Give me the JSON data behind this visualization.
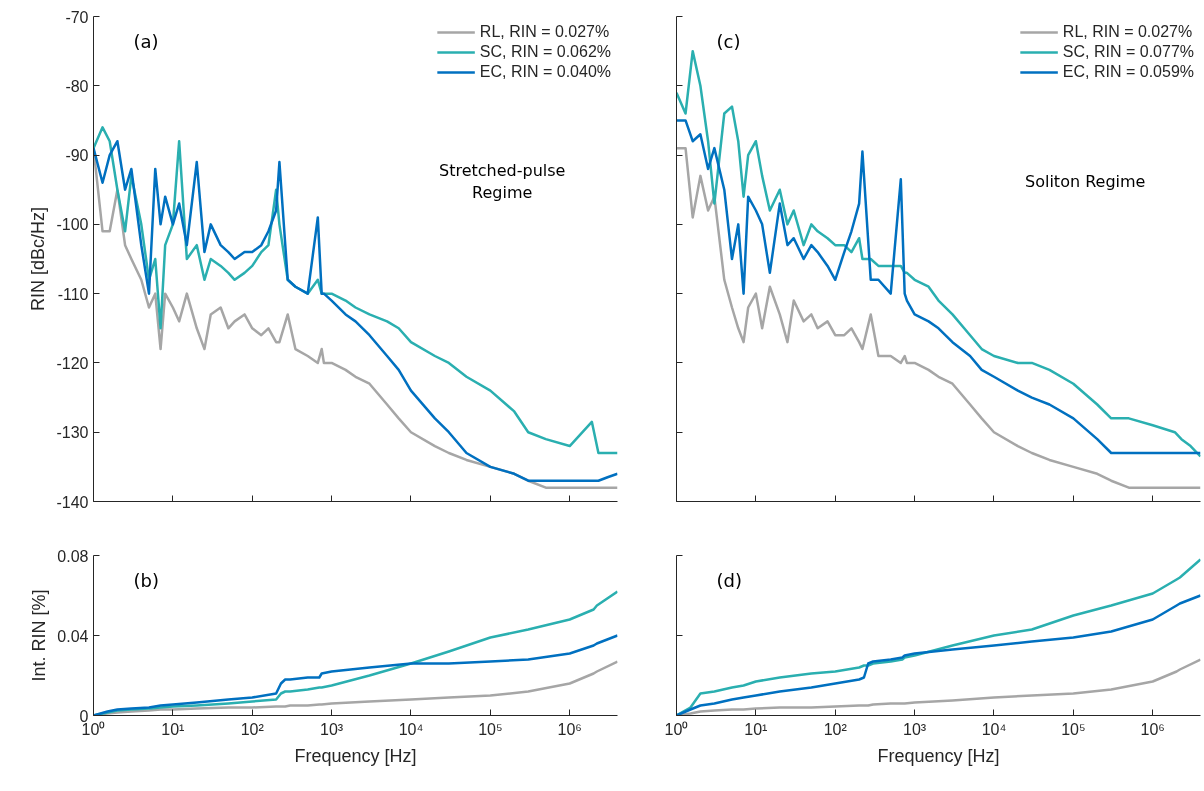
{
  "chart_data": [
    {
      "type": "line",
      "title": "(a)",
      "ylabel": "RIN [dBc/Hz]",
      "annotations": [
        "Stretched-pulse\nRegime"
      ],
      "log": "x",
      "legend": "top right",
      "tick_labels": "y",
      "xlim": [
        1,
        4000000
      ],
      "ylim": [
        -140,
        -70
      ],
      "yticks": [
        -140,
        -130,
        -120,
        -110,
        -100,
        -90,
        -80,
        -70
      ],
      "xticks": [
        {
          "value": 1,
          "label": null
        },
        {
          "value": 10,
          "label": null
        },
        {
          "value": 100,
          "label": null
        },
        {
          "value": 1000,
          "label": null
        },
        {
          "value": 10000,
          "label": null
        },
        {
          "value": 100000,
          "label": null
        },
        {
          "value": 1000000,
          "label": null
        }
      ],
      "x": [
        1,
        1.3,
        1.6,
        2,
        2.5,
        3,
        4,
        5,
        6,
        7,
        8,
        10,
        12,
        15,
        20,
        25,
        30,
        40,
        50,
        60,
        80,
        100,
        130,
        160,
        200,
        220,
        280,
        350,
        500,
        670,
        750,
        800,
        1000,
        1500,
        2000,
        3000,
        5000,
        7000,
        10000,
        20000,
        30000,
        50000,
        100000,
        200000,
        300000,
        500000,
        1000000,
        1900000,
        2300000,
        3000000,
        4000000
      ],
      "series": [
        {
          "name": "RL, RIN = 0.027%",
          "color": "#a6a6a6",
          "values": [
            -89,
            -101,
            -101,
            -95,
            -103,
            -105,
            -108,
            -112,
            -110,
            -118,
            -110,
            -112,
            -114,
            -110,
            -115,
            -118,
            -113,
            -112,
            -115,
            -114,
            -113,
            -115,
            -116,
            -115,
            -117,
            -117,
            -113,
            -118,
            -119,
            -120,
            -118,
            -120,
            -120,
            -121,
            -122,
            -123,
            -126,
            -128,
            -130,
            -132,
            -133,
            -134,
            -135,
            -136,
            -137,
            -138,
            -138,
            -138,
            -138,
            -138,
            -138
          ]
        },
        {
          "name": "SC, RIN = 0.062%",
          "color": "#2aafb0",
          "values": [
            -89,
            -86,
            -88,
            -95,
            -101,
            -93,
            -100,
            -108,
            -105,
            -115,
            -103,
            -100,
            -88,
            -105,
            -103,
            -108,
            -105,
            -106,
            -107,
            -108,
            -107,
            -106,
            -104,
            -103,
            -95,
            -100,
            -108,
            -109,
            -110,
            -108,
            -110,
            -110,
            -110,
            -111,
            -112,
            -113,
            -114,
            -115,
            -117,
            -119,
            -120,
            -122,
            -124,
            -127,
            -130,
            -131,
            -132,
            -128.5,
            -133,
            -133,
            -133
          ]
        },
        {
          "name": "EC, RIN = 0.040%",
          "color": "#0070c0",
          "values": [
            -89,
            -94,
            -90,
            -88,
            -95,
            -92,
            -103,
            -110,
            -92,
            -100,
            -96,
            -100,
            -97,
            -103,
            -91,
            -104,
            -100,
            -103,
            -104,
            -105,
            -104,
            -104,
            -103,
            -101,
            -98,
            -91,
            -108,
            -109,
            -110,
            -99,
            -110,
            -110,
            -111,
            -113,
            -114,
            -116,
            -119,
            -121,
            -124,
            -128,
            -130,
            -133,
            -135,
            -136,
            -137,
            -137,
            -137,
            -137,
            -137,
            -136.5,
            -136
          ]
        }
      ]
    },
    {
      "type": "line",
      "title": "(c)",
      "annotations": [
        "Soliton Regime"
      ],
      "log": "x",
      "legend": "top right",
      "tick_labels": false,
      "xlim": [
        1,
        4000000
      ],
      "ylim": [
        -140,
        -70
      ],
      "yticks": [
        {
          "value": -140,
          "label": null
        },
        {
          "value": -130,
          "label": null
        },
        {
          "value": -120,
          "label": null
        },
        {
          "value": -110,
          "label": null
        },
        {
          "value": -100,
          "label": null
        },
        {
          "value": -90,
          "label": null
        },
        {
          "value": -80,
          "label": null
        },
        {
          "value": -70,
          "label": null
        }
      ],
      "xticks": [
        {
          "value": 1,
          "label": null
        },
        {
          "value": 10,
          "label": null
        },
        {
          "value": 100,
          "label": null
        },
        {
          "value": 1000,
          "label": null
        },
        {
          "value": 10000,
          "label": null
        },
        {
          "value": 100000,
          "label": null
        },
        {
          "value": 1000000,
          "label": null
        }
      ],
      "x": [
        1,
        1.3,
        1.6,
        2,
        2.5,
        3,
        4,
        5,
        6,
        7,
        8,
        10,
        12,
        15,
        20,
        25,
        30,
        40,
        50,
        60,
        80,
        100,
        130,
        160,
        200,
        220,
        280,
        350,
        500,
        670,
        750,
        800,
        1000,
        1500,
        2000,
        3000,
        5000,
        7000,
        10000,
        20000,
        30000,
        50000,
        100000,
        200000,
        300000,
        500000,
        1000000,
        1900000,
        2300000,
        3000000,
        4000000
      ],
      "series": [
        {
          "name": "RL, RIN = 0.027%",
          "color": "#a6a6a6",
          "values": [
            -89,
            -89,
            -99,
            -93,
            -98,
            -96,
            -108,
            -112,
            -115,
            -117,
            -112,
            -110,
            -115,
            -109,
            -113,
            -117,
            -111,
            -114,
            -113,
            -115,
            -114,
            -116,
            -116,
            -115,
            -117,
            -118,
            -113,
            -119,
            -119,
            -120,
            -119,
            -120,
            -120,
            -121,
            -122,
            -123,
            -126,
            -128,
            -130,
            -132,
            -133,
            -134,
            -135,
            -136,
            -137,
            -138,
            -138,
            -138,
            -138,
            -138,
            -138
          ]
        },
        {
          "name": "SC, RIN = 0.077%",
          "color": "#2aafb0",
          "values": [
            -81,
            -84,
            -75,
            -80,
            -88,
            -97,
            -84,
            -83,
            -88,
            -96,
            -90,
            -88,
            -93,
            -98,
            -95,
            -100,
            -98,
            -103,
            -100,
            -101,
            -102,
            -103,
            -103,
            -104,
            -102,
            -105,
            -105,
            -106,
            -106,
            -106,
            -107,
            -107,
            -108,
            -109,
            -111,
            -113,
            -116,
            -118,
            -119,
            -120,
            -120,
            -121,
            -123,
            -126,
            -128,
            -128,
            -129,
            -130,
            -131,
            -132,
            -133.5
          ]
        },
        {
          "name": "EC, RIN = 0.059%",
          "color": "#0070c0",
          "values": [
            -85,
            -85,
            -88,
            -87,
            -92,
            -89,
            -95,
            -105,
            -100,
            -110,
            -96,
            -98,
            -100,
            -107,
            -97,
            -103,
            -102,
            -105,
            -103,
            -104,
            -106,
            -108,
            -104,
            -101,
            -97,
            -89.5,
            -108,
            -108,
            -110,
            -93.5,
            -110,
            -111,
            -113,
            -114,
            -115,
            -117,
            -119,
            -121,
            -122,
            -124,
            -125,
            -126,
            -128,
            -131,
            -133,
            -133,
            -133,
            -133,
            -133,
            -133,
            -133
          ]
        }
      ]
    },
    {
      "type": "line",
      "title": "(b)",
      "xlabel": "Frequency [Hz]",
      "ylabel": "Int. RIN [%]",
      "log": "x",
      "xlim": [
        1,
        4000000
      ],
      "ylim": [
        0,
        0.08
      ],
      "yticks": [
        0,
        0.04,
        0.08
      ],
      "xticks": [
        {
          "value": 1,
          "label": "10⁰"
        },
        {
          "value": 10,
          "label": "10¹"
        },
        {
          "value": 100,
          "label": "10²"
        },
        {
          "value": 1000,
          "label": "10³"
        },
        {
          "value": 10000,
          "label": "10⁴"
        },
        {
          "value": 100000,
          "label": "10⁵"
        },
        {
          "value": 1000000,
          "label": "10⁶"
        }
      ],
      "x": [
        1,
        1.5,
        2,
        3,
        5,
        7,
        10,
        20,
        50,
        100,
        200,
        230,
        260,
        300,
        500,
        700,
        750,
        1000,
        3000,
        10000,
        30000,
        100000,
        300000,
        1000000,
        2000000,
        2200000,
        4000000
      ],
      "series": [
        {
          "color": "#a6a6a6",
          "values": [
            0,
            0.001,
            0.0015,
            0.002,
            0.0025,
            0.003,
            0.003,
            0.0035,
            0.004,
            0.004,
            0.0045,
            0.0045,
            0.0045,
            0.005,
            0.005,
            0.0055,
            0.0055,
            0.006,
            0.007,
            0.008,
            0.009,
            0.01,
            0.012,
            0.016,
            0.021,
            0.022,
            0.027
          ]
        },
        {
          "color": "#2aafb0",
          "values": [
            0,
            0.0015,
            0.0025,
            0.003,
            0.0035,
            0.004,
            0.0045,
            0.005,
            0.006,
            0.007,
            0.008,
            0.011,
            0.012,
            0.012,
            0.013,
            0.014,
            0.014,
            0.015,
            0.02,
            0.026,
            0.032,
            0.039,
            0.043,
            0.048,
            0.053,
            0.055,
            0.062
          ]
        },
        {
          "color": "#0070c0",
          "values": [
            0,
            0.002,
            0.003,
            0.0035,
            0.004,
            0.005,
            0.0055,
            0.0065,
            0.008,
            0.009,
            0.011,
            0.016,
            0.018,
            0.018,
            0.019,
            0.019,
            0.021,
            0.022,
            0.024,
            0.026,
            0.026,
            0.027,
            0.028,
            0.031,
            0.035,
            0.036,
            0.04
          ]
        }
      ]
    },
    {
      "type": "line",
      "title": "(d)",
      "xlabel": "Frequency [Hz]",
      "log": "x",
      "tick_labels": "x",
      "xlim": [
        1,
        4000000
      ],
      "ylim": [
        0,
        0.08
      ],
      "yticks": [
        0,
        0.04,
        0.08
      ],
      "xticks": [
        {
          "value": 1,
          "label": "10⁰"
        },
        {
          "value": 10,
          "label": "10¹"
        },
        {
          "value": 100,
          "label": "10²"
        },
        {
          "value": 1000,
          "label": "10³"
        },
        {
          "value": 10000,
          "label": "10⁴"
        },
        {
          "value": 100000,
          "label": "10⁵"
        },
        {
          "value": 1000000,
          "label": "10⁶"
        }
      ],
      "x": [
        1,
        1.5,
        2,
        3,
        5,
        7,
        10,
        20,
        50,
        100,
        200,
        230,
        260,
        300,
        500,
        700,
        750,
        1000,
        3000,
        10000,
        30000,
        100000,
        300000,
        1000000,
        2000000,
        2200000,
        4000000
      ],
      "series": [
        {
          "color": "#a6a6a6",
          "values": [
            0,
            0.001,
            0.002,
            0.0025,
            0.003,
            0.003,
            0.0035,
            0.004,
            0.004,
            0.0045,
            0.005,
            0.005,
            0.005,
            0.0055,
            0.006,
            0.006,
            0.006,
            0.0065,
            0.0075,
            0.009,
            0.01,
            0.011,
            0.013,
            0.017,
            0.022,
            0.023,
            0.028
          ]
        },
        {
          "color": "#2aafb0",
          "values": [
            0,
            0.004,
            0.011,
            0.012,
            0.014,
            0.015,
            0.017,
            0.019,
            0.021,
            0.022,
            0.024,
            0.025,
            0.025,
            0.026,
            0.027,
            0.028,
            0.029,
            0.03,
            0.035,
            0.04,
            0.043,
            0.05,
            0.055,
            0.061,
            0.068,
            0.069,
            0.078
          ]
        },
        {
          "color": "#0070c0",
          "values": [
            0,
            0.003,
            0.005,
            0.006,
            0.008,
            0.009,
            0.01,
            0.012,
            0.014,
            0.016,
            0.018,
            0.019,
            0.026,
            0.027,
            0.028,
            0.029,
            0.03,
            0.031,
            0.033,
            0.035,
            0.037,
            0.039,
            0.042,
            0.048,
            0.055,
            0.056,
            0.06
          ]
        }
      ]
    }
  ]
}
